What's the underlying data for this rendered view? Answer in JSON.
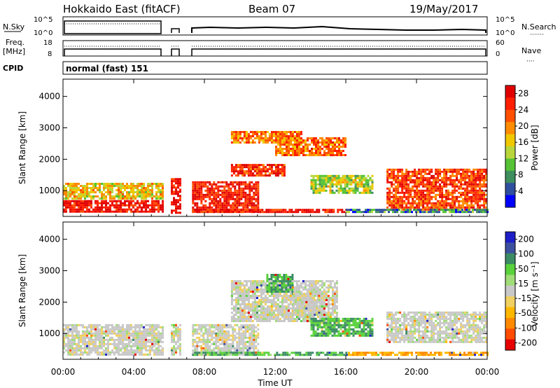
{
  "header": {
    "station": "Hokkaido East (fitACF)",
    "beam": "Beam 07",
    "date": "19/May/2017"
  },
  "noise_panel": {
    "left_label": "N.Sky",
    "right_label": "N.Search",
    "left_ticks": [
      "10^5",
      "10^0"
    ],
    "right_ticks": [
      "10^5",
      "10^0"
    ],
    "right_legend_glyph": "·······"
  },
  "freq_panel": {
    "left_label_line1": "Freq.",
    "left_label_line2": "[MHz]",
    "right_label": "Nave",
    "left_ticks": [
      "18",
      "8"
    ],
    "right_ticks": [
      "60",
      "0"
    ],
    "right_legend_glyph": "····"
  },
  "cpid_panel": {
    "label": "CPID",
    "program": "normal (fast) 151"
  },
  "colors": {
    "power_scale": [
      "#0000ff",
      "#2f4f9f",
      "#3e8e5e",
      "#55c335",
      "#b8d63c",
      "#f0c800",
      "#ff8c00",
      "#ff5000",
      "#ff1e00",
      "#e00000"
    ],
    "velocity_scale": [
      "#e60000",
      "#ff4c00",
      "#ff8a00",
      "#ffb800",
      "#f0d060",
      "#c8c8c8",
      "#a0dc78",
      "#5ad23c",
      "#3c8c64",
      "#3c50a0",
      "#1e1ec8"
    ]
  },
  "chart_data": [
    {
      "type": "heatmap",
      "name": "power",
      "ylabel": "Slant Range [km]",
      "yticks": [
        "1000",
        "2000",
        "3000",
        "4000"
      ],
      "ylim": [
        180,
        4550
      ],
      "colorbar": {
        "label": "Power [dB]",
        "ticks": [
          "4",
          "8",
          "12",
          "16",
          "20",
          "24",
          "28"
        ],
        "range": [
          0,
          30
        ]
      },
      "regions": [
        {
          "t0": 0.0,
          "t1": 5.6,
          "r0": 300,
          "r1": 700,
          "level": 0.92
        },
        {
          "t0": 0.0,
          "t1": 5.6,
          "r0": 750,
          "r1": 1250,
          "level": 0.55
        },
        {
          "t0": 6.1,
          "t1": 6.6,
          "r0": 300,
          "r1": 1400,
          "level": 0.95
        },
        {
          "t0": 7.3,
          "t1": 11.0,
          "r0": 300,
          "r1": 1300,
          "level": 0.88
        },
        {
          "t0": 7.3,
          "t1": 16.0,
          "r0": 300,
          "r1": 420,
          "level": 0.9
        },
        {
          "t0": 9.5,
          "t1": 12.5,
          "r0": 1450,
          "r1": 1850,
          "level": 0.82
        },
        {
          "t0": 12.0,
          "t1": 16.0,
          "r0": 2100,
          "r1": 2700,
          "level": 0.74
        },
        {
          "t0": 9.5,
          "t1": 13.5,
          "r0": 2500,
          "r1": 2900,
          "level": 0.7
        },
        {
          "t0": 14.0,
          "t1": 17.5,
          "r0": 900,
          "r1": 1500,
          "level": 0.45
        },
        {
          "t0": 18.3,
          "t1": 24.0,
          "r0": 400,
          "r1": 1700,
          "level": 0.8
        },
        {
          "t0": 16.0,
          "t1": 24.0,
          "r0": 300,
          "r1": 420,
          "level": 0.25
        }
      ],
      "x_axis": {
        "ticks": [
          "00:00",
          "04:00",
          "08:00",
          "12:00",
          "16:00",
          "20:00",
          "00:00"
        ],
        "range_hours": [
          0,
          24
        ]
      }
    },
    {
      "type": "heatmap",
      "name": "velocity",
      "xlabel": "Time UT",
      "ylabel": "Slant Range [km]",
      "yticks": [
        "1000",
        "2000",
        "3000",
        "4000"
      ],
      "ylim": [
        180,
        4550
      ],
      "colorbar": {
        "label": "Velocity [m s⁻¹]",
        "ticks": [
          "200",
          "100",
          "50",
          "15",
          "-15",
          "-50",
          "-100",
          "-200"
        ]
      },
      "regions": [
        {
          "t0": 0.0,
          "t1": 5.6,
          "r0": 300,
          "r1": 1300,
          "level": 0.0
        },
        {
          "t0": 6.1,
          "t1": 6.6,
          "r0": 300,
          "r1": 1300,
          "level": 0.0
        },
        {
          "t0": 7.3,
          "t1": 11.0,
          "r0": 300,
          "r1": 1300,
          "level": 0.0
        },
        {
          "t0": 9.5,
          "t1": 15.5,
          "r0": 1400,
          "r1": 2700,
          "level": 0.0
        },
        {
          "t0": 13.0,
          "t1": 14.5,
          "r0": 1600,
          "r1": 2300,
          "level": 0.0
        },
        {
          "t0": 7.3,
          "t1": 16.0,
          "r0": 300,
          "r1": 420,
          "level": 0.45
        },
        {
          "t0": 11.5,
          "t1": 13.0,
          "r0": 2300,
          "r1": 2900,
          "level": 0.45
        },
        {
          "t0": 14.0,
          "t1": 17.5,
          "r0": 900,
          "r1": 1500,
          "level": 0.45
        },
        {
          "t0": 18.3,
          "t1": 24.0,
          "r0": 700,
          "r1": 1700,
          "level": 0.0
        },
        {
          "t0": 16.0,
          "t1": 24.0,
          "r0": 300,
          "r1": 420,
          "level": -0.45
        }
      ],
      "x_axis": {
        "ticks": [
          "00:00",
          "04:00",
          "08:00",
          "12:00",
          "16:00",
          "20:00",
          "00:00"
        ],
        "range_hours": [
          0,
          24
        ]
      }
    }
  ]
}
